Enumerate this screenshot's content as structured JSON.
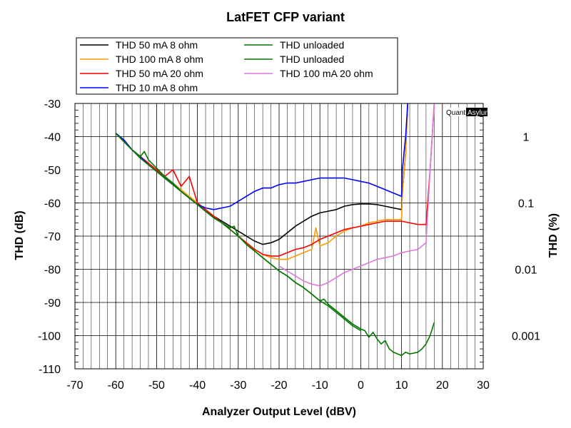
{
  "chart_data": {
    "type": "line",
    "title": "LatFET CFP variant",
    "xlabel": "Analyzer Output Level (dBV)",
    "ylabel": "THD (dB)",
    "y2label": "THD (%)",
    "xlim": [
      -70,
      30
    ],
    "ylim": [
      -110,
      -30
    ],
    "x_ticks": [
      -70,
      -60,
      -50,
      -40,
      -30,
      -20,
      -10,
      0,
      10,
      20,
      30
    ],
    "y_ticks": [
      -30,
      -40,
      -50,
      -60,
      -70,
      -80,
      -90,
      -100,
      -110
    ],
    "y2_ticks": [
      {
        "label": "1",
        "db": -40
      },
      {
        "label": "0.1",
        "db": -60
      },
      {
        "label": "0.01",
        "db": -80
      },
      {
        "label": "0.001",
        "db": -100
      }
    ],
    "grid": true,
    "legend_position": "top",
    "watermark": {
      "part1": "Quant",
      "part2": "Asylum"
    },
    "series": [
      {
        "name": "THD 50 mA 8 ohm",
        "color": "#000000",
        "points": [
          [
            -60,
            -39
          ],
          [
            -58,
            -41
          ],
          [
            -56,
            -44
          ],
          [
            -54,
            -46
          ],
          [
            -52,
            -48.5
          ],
          [
            -50,
            -50.5
          ],
          [
            -48,
            -52.5
          ],
          [
            -46,
            -54.5
          ],
          [
            -44,
            -56.5
          ],
          [
            -42,
            -58.5
          ],
          [
            -40,
            -60.5
          ],
          [
            -38,
            -62.5
          ],
          [
            -36,
            -64
          ],
          [
            -34,
            -65.5
          ],
          [
            -32,
            -67
          ],
          [
            -30,
            -68.5
          ],
          [
            -28,
            -70
          ],
          [
            -26,
            -71.5
          ],
          [
            -24,
            -72.5
          ],
          [
            -22,
            -72
          ],
          [
            -20,
            -71
          ],
          [
            -18,
            -69
          ],
          [
            -16,
            -67
          ],
          [
            -14,
            -65.5
          ],
          [
            -12,
            -64
          ],
          [
            -10,
            -63
          ],
          [
            -8,
            -62.5
          ],
          [
            -6,
            -62
          ],
          [
            -4,
            -61
          ],
          [
            -2,
            -60.5
          ],
          [
            0,
            -60.3
          ],
          [
            2,
            -60.3
          ],
          [
            4,
            -60.5
          ],
          [
            6,
            -61
          ],
          [
            8,
            -61.5
          ],
          [
            10,
            -62
          ],
          [
            10.2,
            -57
          ],
          [
            11,
            -45
          ],
          [
            11.5,
            -30
          ]
        ]
      },
      {
        "name": "THD 100 mA 8 ohm",
        "color": "#ff9900",
        "points": [
          [
            -60,
            -39
          ],
          [
            -58,
            -41.5
          ],
          [
            -56,
            -44
          ],
          [
            -54,
            -46
          ],
          [
            -52,
            -48.5
          ],
          [
            -50,
            -50.5
          ],
          [
            -48,
            -52.5
          ],
          [
            -46,
            -54
          ],
          [
            -44,
            -56
          ],
          [
            -42,
            -58
          ],
          [
            -40,
            -60
          ],
          [
            -38,
            -62
          ],
          [
            -36,
            -64
          ],
          [
            -34,
            -66
          ],
          [
            -32,
            -68
          ],
          [
            -30,
            -70
          ],
          [
            -28,
            -72
          ],
          [
            -26,
            -74
          ],
          [
            -24,
            -75.5
          ],
          [
            -22,
            -76.5
          ],
          [
            -20,
            -77
          ],
          [
            -18,
            -77
          ],
          [
            -16,
            -76
          ],
          [
            -14,
            -75
          ],
          [
            -12,
            -74
          ],
          [
            -11,
            -67.5
          ],
          [
            -10,
            -73
          ],
          [
            -8,
            -72
          ],
          [
            -6,
            -70
          ],
          [
            -4,
            -68.5
          ],
          [
            -2,
            -67.5
          ],
          [
            0,
            -67
          ],
          [
            2,
            -66
          ],
          [
            4,
            -65.5
          ],
          [
            6,
            -65
          ],
          [
            8,
            -65
          ],
          [
            10,
            -65
          ],
          [
            10.2,
            -57
          ],
          [
            11,
            -45
          ],
          [
            11.5,
            -30
          ]
        ]
      },
      {
        "name": "THD 50 mA 20 ohm",
        "color": "#ff0000",
        "points": [
          [
            -60,
            -39
          ],
          [
            -58,
            -41.5
          ],
          [
            -56,
            -44
          ],
          [
            -54,
            -46
          ],
          [
            -52,
            -48
          ],
          [
            -50,
            -50
          ],
          [
            -48,
            -52
          ],
          [
            -46,
            -50
          ],
          [
            -44,
            -55
          ],
          [
            -42,
            -52
          ],
          [
            -40,
            -60
          ],
          [
            -38,
            -62
          ],
          [
            -36,
            -64
          ],
          [
            -34,
            -66
          ],
          [
            -32,
            -68
          ],
          [
            -30,
            -70
          ],
          [
            -28,
            -72
          ],
          [
            -26,
            -74
          ],
          [
            -24,
            -75.5
          ],
          [
            -22,
            -76
          ],
          [
            -20,
            -76
          ],
          [
            -18,
            -75
          ],
          [
            -16,
            -74
          ],
          [
            -14,
            -73.5
          ],
          [
            -12,
            -72.5
          ],
          [
            -10,
            -71
          ],
          [
            -8,
            -70
          ],
          [
            -6,
            -69
          ],
          [
            -4,
            -68
          ],
          [
            -2,
            -67.5
          ],
          [
            0,
            -67
          ],
          [
            2,
            -66.5
          ],
          [
            4,
            -66
          ],
          [
            6,
            -65.5
          ],
          [
            8,
            -65.5
          ],
          [
            10,
            -65.5
          ],
          [
            12,
            -66
          ],
          [
            14,
            -66.5
          ],
          [
            16,
            -66.5
          ],
          [
            17,
            -50
          ],
          [
            18,
            -30
          ]
        ]
      },
      {
        "name": "THD 10 mA 8 ohm",
        "color": "#0000ff",
        "points": [
          [
            -60,
            -39
          ],
          [
            -58,
            -41
          ],
          [
            -56,
            -44
          ],
          [
            -54,
            -46
          ],
          [
            -52,
            -48.5
          ],
          [
            -50,
            -50.5
          ],
          [
            -48,
            -52.5
          ],
          [
            -46,
            -54.5
          ],
          [
            -44,
            -56.5
          ],
          [
            -42,
            -58.5
          ],
          [
            -40,
            -60.5
          ],
          [
            -38,
            -61.5
          ],
          [
            -36,
            -62
          ],
          [
            -34,
            -61.5
          ],
          [
            -32,
            -61
          ],
          [
            -30,
            -59.5
          ],
          [
            -28,
            -58
          ],
          [
            -26,
            -56.5
          ],
          [
            -24,
            -55.5
          ],
          [
            -22,
            -55.5
          ],
          [
            -20,
            -54.5
          ],
          [
            -18,
            -54
          ],
          [
            -16,
            -54
          ],
          [
            -14,
            -53.5
          ],
          [
            -12,
            -53
          ],
          [
            -10,
            -52.5
          ],
          [
            -8,
            -52.5
          ],
          [
            -6,
            -52.5
          ],
          [
            -4,
            -52.5
          ],
          [
            -2,
            -53
          ],
          [
            0,
            -53.5
          ],
          [
            2,
            -54
          ],
          [
            4,
            -55
          ],
          [
            6,
            -56
          ],
          [
            8,
            -57
          ],
          [
            10,
            -58
          ],
          [
            10.2,
            -50
          ],
          [
            11,
            -40
          ],
          [
            11.5,
            -30
          ]
        ]
      },
      {
        "name": "THD unloaded",
        "color": "#007700",
        "points": [
          [
            -60,
            -39
          ],
          [
            -58,
            -41.5
          ],
          [
            -56,
            -44
          ],
          [
            -54,
            -46
          ],
          [
            -53,
            -44.5
          ],
          [
            -52,
            -47
          ],
          [
            -50,
            -49.5
          ],
          [
            -48,
            -52
          ],
          [
            -46,
            -54
          ],
          [
            -44,
            -56.5
          ],
          [
            -42,
            -58.5
          ],
          [
            -40,
            -60.5
          ],
          [
            -38,
            -62.5
          ],
          [
            -36,
            -64.5
          ],
          [
            -34,
            -66
          ],
          [
            -32,
            -67.5
          ],
          [
            -31,
            -67
          ],
          [
            -30,
            -70
          ],
          [
            -28,
            -72.5
          ],
          [
            -26,
            -74.5
          ],
          [
            -24,
            -76.5
          ],
          [
            -22,
            -78.5
          ],
          [
            -20,
            -80.5
          ],
          [
            -18,
            -82
          ],
          [
            -16,
            -84
          ],
          [
            -14,
            -85.5
          ],
          [
            -12,
            -87.5
          ],
          [
            -10,
            -89.5
          ],
          [
            -9,
            -89
          ],
          [
            -8,
            -90.5
          ],
          [
            -6,
            -92.5
          ],
          [
            -4,
            -94.5
          ],
          [
            -2,
            -96.5
          ],
          [
            0,
            -98
          ],
          [
            1,
            -98.5
          ],
          [
            2,
            -100.5
          ],
          [
            3,
            -99
          ],
          [
            4,
            -101
          ],
          [
            5,
            -102.5
          ],
          [
            6,
            -101.5
          ],
          [
            7,
            -104
          ],
          [
            8,
            -105
          ],
          [
            9,
            -105.5
          ],
          [
            10,
            -106
          ],
          [
            11,
            -105
          ],
          [
            12,
            -105.5
          ],
          [
            14,
            -105
          ],
          [
            15,
            -104
          ],
          [
            16,
            -102.5
          ],
          [
            17,
            -100
          ],
          [
            18,
            -96
          ]
        ]
      },
      {
        "name": "THD unloaded",
        "color": "#007700",
        "points": [
          [
            -60,
            -39
          ],
          [
            -58,
            -41.5
          ],
          [
            -56,
            -44
          ],
          [
            -54,
            -46.5
          ],
          [
            -52,
            -48.5
          ],
          [
            -50,
            -50.5
          ],
          [
            -48,
            -52.5
          ],
          [
            -46,
            -54.5
          ],
          [
            -44,
            -56.5
          ],
          [
            -42,
            -58.5
          ],
          [
            -40,
            -60.5
          ],
          [
            -38,
            -62.5
          ],
          [
            -36,
            -64.5
          ],
          [
            -34,
            -66
          ],
          [
            -32,
            -68
          ],
          [
            -30,
            -70
          ],
          [
            -28,
            -72.5
          ],
          [
            -26,
            -74.5
          ],
          [
            -24,
            -76.5
          ],
          [
            -22,
            -78.5
          ],
          [
            -20,
            -80.5
          ],
          [
            -18,
            -82
          ],
          [
            -16,
            -84
          ],
          [
            -14,
            -85.5
          ],
          [
            -12,
            -87.5
          ],
          [
            -10,
            -89.5
          ],
          [
            -8,
            -91
          ],
          [
            -6,
            -93
          ],
          [
            -4,
            -95
          ],
          [
            -2,
            -97
          ],
          [
            0,
            -98.5
          ]
        ]
      },
      {
        "name": "THD 100 mA 20 ohm",
        "color": "#dd77dd",
        "points": [
          [
            -20,
            -79
          ],
          [
            -18,
            -80.5
          ],
          [
            -16,
            -82
          ],
          [
            -14,
            -83.5
          ],
          [
            -12,
            -84.5
          ],
          [
            -10,
            -85
          ],
          [
            -8,
            -84
          ],
          [
            -6,
            -82.5
          ],
          [
            -4,
            -81
          ],
          [
            -2,
            -80
          ],
          [
            0,
            -79
          ],
          [
            2,
            -78
          ],
          [
            4,
            -77
          ],
          [
            6,
            -76.5
          ],
          [
            8,
            -76
          ],
          [
            10,
            -75
          ],
          [
            12,
            -74.5
          ],
          [
            14,
            -74
          ],
          [
            15,
            -73
          ],
          [
            16,
            -72
          ],
          [
            17,
            -50
          ],
          [
            18,
            -30
          ]
        ]
      }
    ]
  }
}
